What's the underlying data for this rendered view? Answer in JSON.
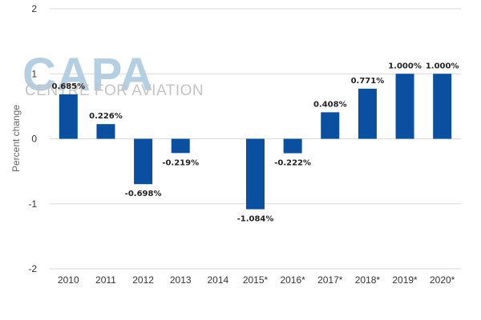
{
  "watermark": {
    "logo": "CAPA",
    "tagline": "CENTRE FOR AVIATION"
  },
  "colors": {
    "bar": "#0a4fa0",
    "grid": "#d9d9d9",
    "logo": "#b5cfe2"
  },
  "chart_data": {
    "type": "bar",
    "categories": [
      "2010",
      "2011",
      "2012",
      "2013",
      "2014",
      "2015*",
      "2016*",
      "2017*",
      "2018*",
      "2019*",
      "2020*"
    ],
    "values": [
      0.685,
      0.226,
      -0.698,
      -0.219,
      null,
      -1.084,
      -0.222,
      0.408,
      0.771,
      1.0,
      1.0
    ],
    "data_labels": [
      "0.685%",
      "0.226%",
      "-0.698%",
      "-0.219%",
      "",
      "-1.084%",
      "-0.222%",
      "0.408%",
      "0.771%",
      "1.000%",
      "1.000%"
    ],
    "ylabel": "Percent change",
    "xlabel": "",
    "ylim": [
      -2,
      2
    ],
    "yticks": [
      "-2",
      "-1",
      "0",
      "1",
      "2"
    ],
    "grid": true
  }
}
